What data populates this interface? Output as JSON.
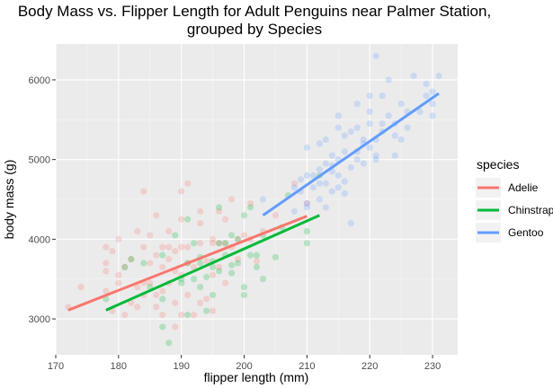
{
  "chart_data": {
    "type": "scatter",
    "title": "Body Mass vs. Flipper Length for Adult Penguins near Palmer Station, grouped by Species",
    "title_lines": [
      "Body Mass vs. Flipper Length for Adult Penguins near Palmer Station,",
      "grouped by Species"
    ],
    "xlabel": "flipper length (mm)",
    "ylabel": "body mass (g)",
    "xlim": [
      170,
      234
    ],
    "ylim": [
      2550,
      6450
    ],
    "x_ticks": [
      170,
      180,
      190,
      200,
      210,
      220,
      230
    ],
    "y_ticks": [
      3000,
      4000,
      5000,
      6000
    ],
    "grid": true,
    "legend": {
      "title": "species",
      "position": "right"
    },
    "series": [
      {
        "name": "Adelie",
        "color": "#F8766D",
        "trend": {
          "x": [
            172,
            210
          ],
          "y": [
            3110,
            4290
          ]
        },
        "points": [
          [
            172,
            3150
          ],
          [
            174,
            3400
          ],
          [
            178,
            3900
          ],
          [
            178,
            3600
          ],
          [
            178,
            3700
          ],
          [
            179,
            3850
          ],
          [
            180,
            4000
          ],
          [
            180,
            3550
          ],
          [
            181,
            3650
          ],
          [
            182,
            3200
          ],
          [
            182,
            3750
          ],
          [
            183,
            3400
          ],
          [
            183,
            4100
          ],
          [
            184,
            3300
          ],
          [
            184,
            3900
          ],
          [
            184,
            4600
          ],
          [
            185,
            3700
          ],
          [
            185,
            3450
          ],
          [
            186,
            3800
          ],
          [
            186,
            3150
          ],
          [
            186,
            4300
          ],
          [
            187,
            3650
          ],
          [
            187,
            3900
          ],
          [
            187,
            3350
          ],
          [
            188,
            3450
          ],
          [
            188,
            4100
          ],
          [
            188,
            3750
          ],
          [
            189,
            3600
          ],
          [
            189,
            3850
          ],
          [
            189,
            3200
          ],
          [
            190,
            3900
          ],
          [
            190,
            4250
          ],
          [
            190,
            3550
          ],
          [
            190,
            4600
          ],
          [
            190,
            3050
          ],
          [
            191,
            3300
          ],
          [
            191,
            3900
          ],
          [
            191,
            3700
          ],
          [
            192,
            3650
          ],
          [
            193,
            3200
          ],
          [
            193,
            3950
          ],
          [
            193,
            4350
          ],
          [
            194,
            3725
          ],
          [
            195,
            4000
          ],
          [
            195,
            3950
          ],
          [
            195,
            3550
          ],
          [
            196,
            3650
          ],
          [
            196,
            3950
          ],
          [
            196,
            4350
          ],
          [
            197,
            3950
          ],
          [
            197,
            4250
          ],
          [
            198,
            3900
          ],
          [
            198,
            4500
          ],
          [
            199,
            4000
          ],
          [
            199,
            3750
          ],
          [
            200,
            4050
          ],
          [
            201,
            4000
          ],
          [
            201,
            4450
          ],
          [
            202,
            3725
          ],
          [
            203,
            4100
          ],
          [
            205,
            4300
          ],
          [
            208,
            4700
          ],
          [
            210,
            4450
          ],
          [
            181,
            3050
          ],
          [
            183,
            3150
          ],
          [
            187,
            3050
          ],
          [
            189,
            2900
          ],
          [
            192,
            3050
          ],
          [
            195,
            3100
          ],
          [
            186,
            3300
          ],
          [
            184,
            3450
          ],
          [
            191,
            4700
          ],
          [
            193,
            4200
          ],
          [
            197,
            3450
          ],
          [
            180,
            3450
          ],
          [
            179,
            3100
          ],
          [
            178,
            3350
          ],
          [
            185,
            4050
          ],
          [
            188,
            3900
          ],
          [
            194,
            3250
          ]
        ]
      },
      {
        "name": "Chinstrap",
        "color": "#00BA38",
        "trend": {
          "x": [
            178,
            212
          ],
          "y": [
            3110,
            4300
          ]
        },
        "points": [
          [
            178,
            3250
          ],
          [
            181,
            3650
          ],
          [
            187,
            2900
          ],
          [
            187,
            3250
          ],
          [
            187,
            3800
          ],
          [
            188,
            2700
          ],
          [
            190,
            3500
          ],
          [
            190,
            3450
          ],
          [
            191,
            3050
          ],
          [
            191,
            3700
          ],
          [
            192,
            3950
          ],
          [
            193,
            3400
          ],
          [
            193,
            3775
          ],
          [
            193,
            3700
          ],
          [
            194,
            3525
          ],
          [
            195,
            3725
          ],
          [
            195,
            3650
          ],
          [
            195,
            3300
          ],
          [
            196,
            3600
          ],
          [
            196,
            3950
          ],
          [
            196,
            4400
          ],
          [
            197,
            3800
          ],
          [
            197,
            3950
          ],
          [
            198,
            3575
          ],
          [
            198,
            3675
          ],
          [
            199,
            3700
          ],
          [
            200,
            3400
          ],
          [
            200,
            4300
          ],
          [
            201,
            3800
          ],
          [
            201,
            4400
          ],
          [
            202,
            3650
          ],
          [
            202,
            3800
          ],
          [
            203,
            4050
          ],
          [
            205,
            3775
          ],
          [
            206,
            4150
          ],
          [
            207,
            4550
          ],
          [
            210,
            4100
          ],
          [
            210,
            3950
          ],
          [
            212,
            4800
          ],
          [
            185,
            3400
          ],
          [
            184,
            3700
          ],
          [
            189,
            4050
          ],
          [
            194,
            3100
          ],
          [
            182,
            3750
          ],
          [
            192,
            3500
          ],
          [
            199,
            4000
          ],
          [
            200,
            3300
          ],
          [
            198,
            4050
          ],
          [
            203,
            3500
          ],
          [
            191,
            4250
          ]
        ]
      },
      {
        "name": "Gentoo",
        "color": "#619CFF",
        "trend": {
          "x": [
            203,
            231
          ],
          "y": [
            4300,
            5830
          ]
        },
        "points": [
          [
            203,
            4500
          ],
          [
            208,
            4350
          ],
          [
            208,
            4650
          ],
          [
            209,
            4600
          ],
          [
            209,
            4750
          ],
          [
            210,
            4400
          ],
          [
            210,
            4800
          ],
          [
            210,
            5150
          ],
          [
            211,
            4650
          ],
          [
            211,
            4800
          ],
          [
            212,
            4875
          ],
          [
            212,
            4500
          ],
          [
            212,
            5200
          ],
          [
            213,
            4700
          ],
          [
            213,
            4950
          ],
          [
            213,
            4400
          ],
          [
            214,
            5050
          ],
          [
            214,
            4925
          ],
          [
            214,
            4850
          ],
          [
            215,
            5000
          ],
          [
            215,
            5550
          ],
          [
            215,
            4650
          ],
          [
            215,
            5400
          ],
          [
            216,
            4725
          ],
          [
            216,
            5100
          ],
          [
            217,
            4900
          ],
          [
            217,
            5350
          ],
          [
            218,
            5700
          ],
          [
            218,
            5000
          ],
          [
            218,
            5400
          ],
          [
            219,
            5250
          ],
          [
            219,
            4950
          ],
          [
            220,
            5450
          ],
          [
            220,
            5150
          ],
          [
            220,
            5800
          ],
          [
            221,
            5250
          ],
          [
            221,
            6300
          ],
          [
            221,
            5050
          ],
          [
            222,
            5350
          ],
          [
            222,
            5450
          ],
          [
            223,
            5550
          ],
          [
            224,
            5450
          ],
          [
            224,
            5300
          ],
          [
            225,
            5250
          ],
          [
            225,
            5700
          ],
          [
            226,
            5400
          ],
          [
            227,
            6050
          ],
          [
            228,
            5600
          ],
          [
            229,
            5950
          ],
          [
            230,
            5850
          ],
          [
            230,
            5700
          ],
          [
            231,
            6050
          ],
          [
            217,
            4200
          ],
          [
            214,
            4600
          ],
          [
            216,
            4575
          ],
          [
            210,
            4450
          ],
          [
            219,
            5200
          ],
          [
            213,
            5250
          ],
          [
            222,
            5800
          ],
          [
            223,
            6000
          ],
          [
            226,
            5600
          ],
          [
            212,
            4700
          ],
          [
            215,
            4800
          ],
          [
            224,
            5050
          ],
          [
            221,
            5000
          ],
          [
            218,
            5100
          ],
          [
            229,
            5800
          ],
          [
            230,
            5550
          ],
          [
            220,
            5600
          ],
          [
            216,
            5300
          ]
        ]
      }
    ]
  }
}
